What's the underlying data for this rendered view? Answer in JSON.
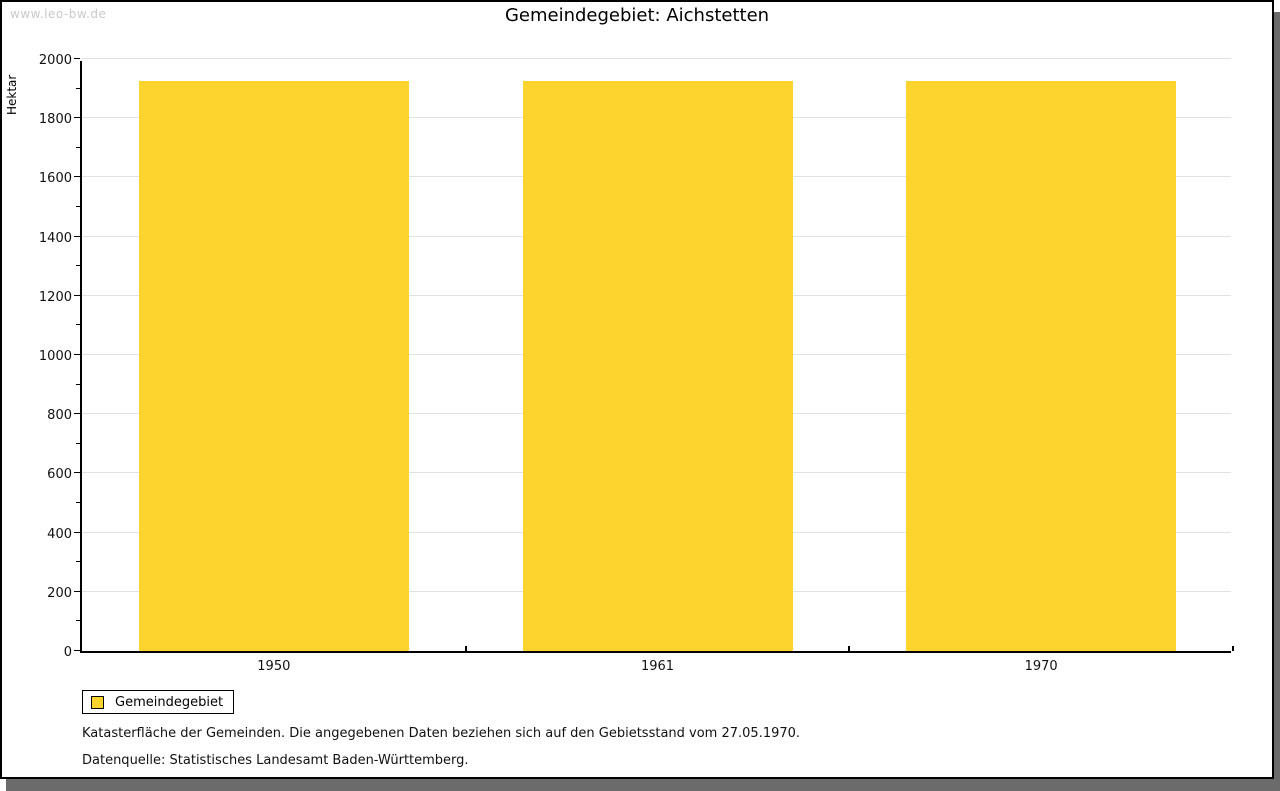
{
  "watermark": "www.leo-bw.de",
  "title": "Gemeindegebiet: Aichstetten",
  "colors": {
    "bar": "#fdd42e",
    "grid": "#e1e1e1",
    "axis": "#000000",
    "watermark": "#c9c9c9",
    "shadow": "#6b6b6b"
  },
  "chart_data": {
    "type": "bar",
    "title": "Gemeindegebiet: Aichstetten",
    "categories": [
      "1950",
      "1961",
      "1970"
    ],
    "series": [
      {
        "name": "Gemeindegebiet",
        "values": [
          1925,
          1925,
          1925
        ]
      }
    ],
    "xlabel": "",
    "ylabel": "Hektar",
    "ylim": [
      0,
      2000
    ],
    "ytick_interval": 200,
    "yminor_tick_interval": 100,
    "grid": "horizontal-major",
    "legend_position": "bottom-left",
    "bar_color": "#fdd42e"
  },
  "legend": {
    "label": "Gemeindegebiet"
  },
  "footnotes": [
    "Katasterfläche der Gemeinden. Die angegebenen Daten beziehen sich auf den Gebietsstand vom 27.05.1970.",
    "Datenquelle: Statistisches Landesamt Baden-Württemberg."
  ]
}
